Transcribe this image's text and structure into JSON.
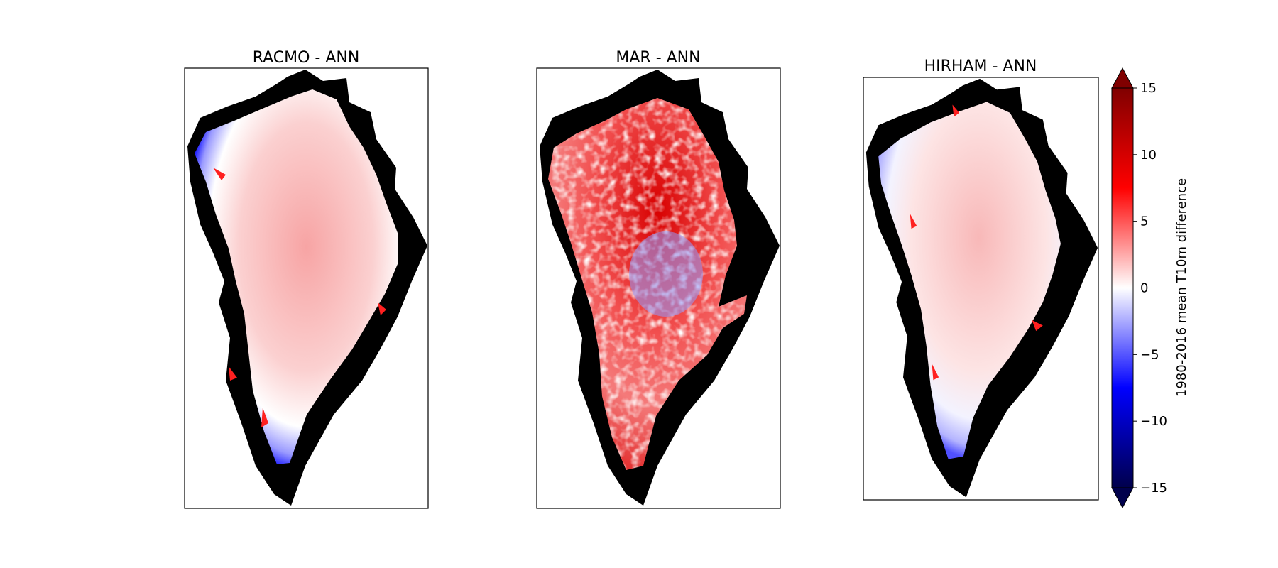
{
  "figure": {
    "panels": [
      {
        "title": "RACMO - ANN"
      },
      {
        "title": "MAR - ANN"
      },
      {
        "title": "HIRHAM - ANN"
      }
    ],
    "colorbar": {
      "label": "1980-2016 mean T10m difference",
      "ticks": [
        {
          "value": 15,
          "label": "15"
        },
        {
          "value": 10,
          "label": "10"
        },
        {
          "value": 5,
          "label": "5"
        },
        {
          "value": 0,
          "label": "0"
        },
        {
          "value": -5,
          "label": "−5"
        },
        {
          "value": -10,
          "label": "−10"
        },
        {
          "value": -15,
          "label": "−15"
        }
      ]
    }
  },
  "chart_data": {
    "type": "heatmap",
    "colormap": "seismic",
    "vmin": -15,
    "vmax": 15,
    "extend": "both",
    "colorbar_label": "1980-2016 mean T10m difference",
    "colors": {
      "ocean": "#ffffff",
      "ice_free_land": "#000000",
      "low": "#00004c",
      "mid": "#ffffff",
      "high": "#800000"
    },
    "panels": [
      {
        "title": "RACMO - ANN",
        "interior_mean_value": 3,
        "margin_value": -6,
        "pattern": "smooth"
      },
      {
        "title": "MAR - ANN",
        "interior_mean_value": 6,
        "margin_value": 7,
        "pattern": "noisy",
        "central_negative_patch_value": -3
      },
      {
        "title": "HIRHAM - ANN",
        "interior_mean_value": 2,
        "margin_value": -3,
        "pattern": "smooth"
      }
    ]
  }
}
